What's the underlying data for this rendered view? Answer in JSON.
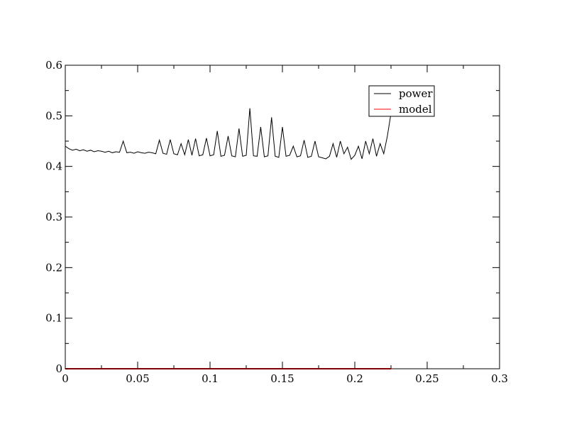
{
  "chart_data": {
    "type": "line",
    "title": "",
    "xlabel": "",
    "ylabel": "",
    "xlim": [
      0,
      0.3
    ],
    "ylim": [
      0,
      0.6
    ],
    "x_ticks": [
      0,
      0.05,
      0.1,
      0.15,
      0.2,
      0.25,
      0.3
    ],
    "x_tick_labels": [
      "0",
      "0.05",
      "0.1",
      "0.15",
      "0.2",
      "0.25",
      "0.3"
    ],
    "y_ticks": [
      0,
      0.1,
      0.2,
      0.3,
      0.4,
      0.5,
      0.6
    ],
    "y_tick_labels": [
      "0",
      "0.1",
      "0.2",
      "0.3",
      "0.4",
      "0.5",
      "0.6"
    ],
    "grid": false,
    "legend": {
      "placement": "top-right"
    },
    "series": [
      {
        "name": "power",
        "color": "#000000",
        "x": [
          0,
          0.0025,
          0.005,
          0.0075,
          0.01,
          0.0125,
          0.015,
          0.0175,
          0.02,
          0.0225,
          0.025,
          0.0275,
          0.03,
          0.0325,
          0.035,
          0.0375,
          0.04,
          0.0425,
          0.045,
          0.0475,
          0.05,
          0.0525,
          0.055,
          0.0575,
          0.06,
          0.0625,
          0.065,
          0.0675,
          0.07,
          0.0725,
          0.075,
          0.0775,
          0.08,
          0.0825,
          0.085,
          0.0875,
          0.09,
          0.0925,
          0.095,
          0.0975,
          0.1,
          0.1025,
          0.105,
          0.1075,
          0.11,
          0.1125,
          0.115,
          0.1175,
          0.12,
          0.1225,
          0.125,
          0.1275,
          0.13,
          0.1325,
          0.135,
          0.1375,
          0.14,
          0.1425,
          0.145,
          0.1475,
          0.15,
          0.1525,
          0.155,
          0.1575,
          0.16,
          0.1625,
          0.165,
          0.1675,
          0.17,
          0.1725,
          0.175,
          0.1775,
          0.18,
          0.1825,
          0.185,
          0.1875,
          0.19,
          0.1925,
          0.195,
          0.1975,
          0.2,
          0.2025,
          0.205,
          0.2075,
          0.21,
          0.2125,
          0.215,
          0.2175,
          0.22,
          0.2225,
          0.225
        ],
        "y": [
          0.44,
          0.435,
          0.432,
          0.434,
          0.431,
          0.433,
          0.43,
          0.432,
          0.429,
          0.431,
          0.43,
          0.428,
          0.43,
          0.427,
          0.429,
          0.428,
          0.45,
          0.427,
          0.428,
          0.426,
          0.429,
          0.427,
          0.426,
          0.428,
          0.427,
          0.425,
          0.452,
          0.426,
          0.424,
          0.453,
          0.425,
          0.423,
          0.445,
          0.423,
          0.453,
          0.422,
          0.455,
          0.421,
          0.423,
          0.456,
          0.421,
          0.423,
          0.47,
          0.42,
          0.422,
          0.46,
          0.421,
          0.419,
          0.475,
          0.42,
          0.422,
          0.515,
          0.421,
          0.42,
          0.478,
          0.419,
          0.421,
          0.497,
          0.42,
          0.418,
          0.478,
          0.42,
          0.422,
          0.44,
          0.419,
          0.421,
          0.452,
          0.418,
          0.42,
          0.45,
          0.419,
          0.417,
          0.415,
          0.42,
          0.445,
          0.418,
          0.45,
          0.425,
          0.438,
          0.414,
          0.422,
          0.44,
          0.415,
          0.45,
          0.425,
          0.455,
          0.42,
          0.445,
          0.425,
          0.46,
          0.505
        ]
      },
      {
        "name": "model",
        "color": "#ff0000",
        "x": [
          0,
          0.225
        ],
        "y": [
          0,
          0
        ]
      }
    ]
  }
}
